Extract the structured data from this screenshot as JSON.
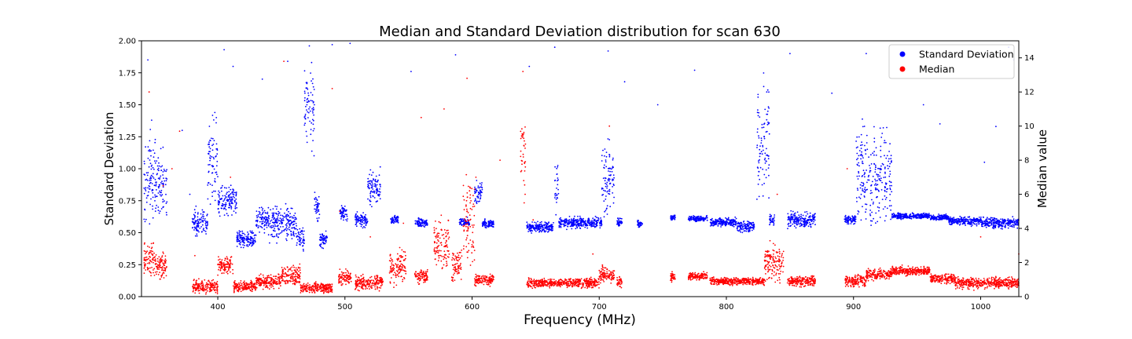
{
  "chart_data": {
    "type": "scatter",
    "title": "Median and Standard Deviation distribution for scan 630",
    "xlabel": "Frequency (MHz)",
    "ylabel": "Standard Deviation",
    "ylabel_right": "Median value",
    "xlim": [
      340,
      1030
    ],
    "ylim": [
      0,
      2.0
    ],
    "ylim_right": [
      0,
      15
    ],
    "x_ticks": [
      400,
      500,
      600,
      700,
      800,
      900,
      1000
    ],
    "y_ticks": [
      0.0,
      0.25,
      0.5,
      0.75,
      1.0,
      1.25,
      1.5,
      1.75,
      2.0
    ],
    "y_tick_labels": [
      "0.00",
      "0.25",
      "0.50",
      "0.75",
      "1.00",
      "1.25",
      "1.50",
      "1.75",
      "2.00"
    ],
    "y_right_ticks": [
      0,
      2,
      4,
      6,
      8,
      10,
      12,
      14
    ],
    "legend_position": "top-right",
    "series": [
      {
        "name": "Standard Deviation",
        "color": "#0000ff",
        "axis": "left",
        "segments": [
          [
            342,
            360,
            0.9,
            0.3
          ],
          [
            380,
            392,
            0.58,
            0.1
          ],
          [
            392,
            400,
            1.05,
            0.3
          ],
          [
            400,
            415,
            0.75,
            0.12
          ],
          [
            415,
            430,
            0.45,
            0.06
          ],
          [
            430,
            440,
            0.6,
            0.1
          ],
          [
            440,
            462,
            0.58,
            0.12
          ],
          [
            462,
            468,
            0.45,
            0.08
          ],
          [
            468,
            476,
            1.45,
            0.3
          ],
          [
            476,
            480,
            0.7,
            0.1
          ],
          [
            480,
            486,
            0.45,
            0.06
          ],
          [
            496,
            502,
            0.65,
            0.05
          ],
          [
            508,
            518,
            0.6,
            0.05
          ],
          [
            518,
            528,
            0.85,
            0.12
          ],
          [
            536,
            542,
            0.6,
            0.03
          ],
          [
            555,
            565,
            0.58,
            0.03
          ],
          [
            590,
            598,
            0.58,
            0.03
          ],
          [
            602,
            608,
            0.82,
            0.08
          ],
          [
            608,
            617,
            0.57,
            0.03
          ],
          [
            643,
            664,
            0.54,
            0.04
          ],
          [
            665,
            668,
            0.85,
            0.2
          ],
          [
            668,
            702,
            0.58,
            0.04
          ],
          [
            702,
            712,
            0.9,
            0.25
          ],
          [
            714,
            718,
            0.58,
            0.03
          ],
          [
            730,
            734,
            0.57,
            0.03
          ],
          [
            756,
            760,
            0.62,
            0.02
          ],
          [
            770,
            785,
            0.61,
            0.02
          ],
          [
            787,
            808,
            0.58,
            0.03
          ],
          [
            808,
            822,
            0.55,
            0.04
          ],
          [
            824,
            834,
            1.2,
            0.45
          ],
          [
            834,
            838,
            0.6,
            0.05
          ],
          [
            848,
            870,
            0.6,
            0.06
          ],
          [
            893,
            902,
            0.6,
            0.03
          ],
          [
            902,
            930,
            0.95,
            0.35
          ],
          [
            930,
            960,
            0.63,
            0.02
          ],
          [
            960,
            975,
            0.62,
            0.02
          ],
          [
            975,
            1000,
            0.59,
            0.03
          ],
          [
            1000,
            1030,
            0.58,
            0.04
          ]
        ],
        "outliers": [
          [
            345,
            1.85
          ],
          [
            348,
            1.38
          ],
          [
            372,
            1.3
          ],
          [
            378,
            0.8
          ],
          [
            405,
            1.93
          ],
          [
            412,
            1.8
          ],
          [
            435,
            1.7
          ],
          [
            455,
            1.84
          ],
          [
            472,
            1.96
          ],
          [
            490,
            1.97
          ],
          [
            504,
            1.98
          ],
          [
            552,
            1.76
          ],
          [
            587,
            1.89
          ],
          [
            645,
            1.8
          ],
          [
            665,
            1.95
          ],
          [
            707,
            1.92
          ],
          [
            720,
            1.68
          ],
          [
            746,
            1.5
          ],
          [
            775,
            1.77
          ],
          [
            850,
            1.9
          ],
          [
            883,
            1.59
          ],
          [
            910,
            1.9
          ],
          [
            955,
            1.5
          ],
          [
            968,
            1.35
          ],
          [
            1003,
            1.05
          ],
          [
            1012,
            1.33
          ],
          [
            1022,
            1.95
          ],
          [
            1026,
            1.85
          ]
        ]
      },
      {
        "name": "Median",
        "color": "#ff0000",
        "axis": "right",
        "segments": [
          [
            342,
            350,
            2.2,
            0.9
          ],
          [
            350,
            360,
            1.8,
            0.8
          ],
          [
            380,
            400,
            0.6,
            0.35
          ],
          [
            400,
            412,
            1.8,
            0.5
          ],
          [
            412,
            430,
            0.6,
            0.3
          ],
          [
            430,
            450,
            0.9,
            0.35
          ],
          [
            450,
            465,
            1.2,
            0.6
          ],
          [
            465,
            490,
            0.5,
            0.3
          ],
          [
            495,
            505,
            1.1,
            0.4
          ],
          [
            508,
            530,
            0.8,
            0.4
          ],
          [
            535,
            548,
            1.7,
            1.0
          ],
          [
            555,
            565,
            1.2,
            0.4
          ],
          [
            570,
            582,
            3.0,
            1.3
          ],
          [
            584,
            592,
            1.9,
            0.8
          ],
          [
            593,
            602,
            4.5,
            2.5
          ],
          [
            602,
            617,
            1.0,
            0.3
          ],
          [
            638,
            642,
            8.5,
            2.5
          ],
          [
            643,
            700,
            0.8,
            0.25
          ],
          [
            700,
            712,
            1.3,
            0.45
          ],
          [
            714,
            718,
            0.9,
            0.3
          ],
          [
            756,
            760,
            1.1,
            0.3
          ],
          [
            770,
            785,
            1.2,
            0.2
          ],
          [
            787,
            830,
            0.9,
            0.2
          ],
          [
            830,
            845,
            2.0,
            1.0
          ],
          [
            848,
            870,
            0.9,
            0.3
          ],
          [
            893,
            910,
            0.9,
            0.35
          ],
          [
            910,
            930,
            1.3,
            0.3
          ],
          [
            930,
            960,
            1.5,
            0.25
          ],
          [
            960,
            980,
            1.05,
            0.25
          ],
          [
            980,
            1030,
            0.8,
            0.3
          ]
        ],
        "outliers": [
          [
            346,
            12.0
          ],
          [
            357,
            6.5
          ],
          [
            364,
            7.5
          ],
          [
            370,
            9.7
          ],
          [
            382,
            2.4
          ],
          [
            410,
            7.0
          ],
          [
            452,
            13.8
          ],
          [
            490,
            12.2
          ],
          [
            496,
            5.0
          ],
          [
            520,
            3.5
          ],
          [
            546,
            4.3
          ],
          [
            560,
            10.5
          ],
          [
            578,
            11.0
          ],
          [
            596,
            12.8
          ],
          [
            603,
            7.0
          ],
          [
            622,
            8.0
          ],
          [
            640,
            13.2
          ],
          [
            648,
            4.5
          ],
          [
            695,
            2.5
          ],
          [
            708,
            10.0
          ],
          [
            840,
            6.0
          ],
          [
            895,
            7.5
          ],
          [
            1000,
            3.5
          ],
          [
            1030,
            2.5
          ]
        ]
      }
    ]
  }
}
